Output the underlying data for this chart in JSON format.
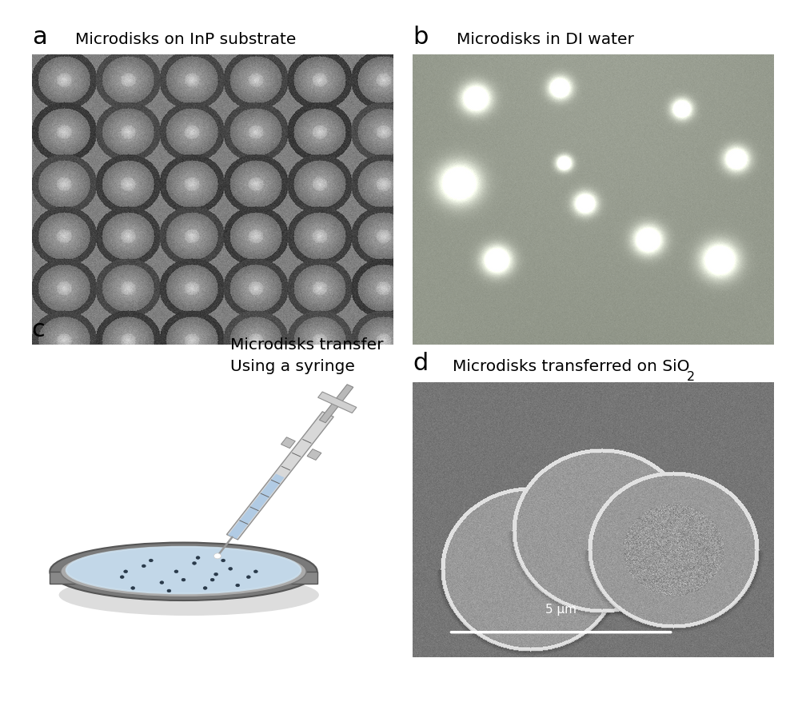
{
  "title_a": "Microdisks on InP substrate",
  "title_b": "Microdisks in DI water",
  "title_c_line1": "Microdisks transfer",
  "title_c_line2": "Using a syringe",
  "title_d": "Microdisks transferred on SiO",
  "title_d_sub": "2",
  "label_a": "a",
  "label_b": "b",
  "label_c": "c",
  "label_d": "d",
  "scale_bar_text": "5 μm",
  "bg_color": "#ffffff",
  "label_fontsize": 22,
  "title_fontsize": 14.5
}
